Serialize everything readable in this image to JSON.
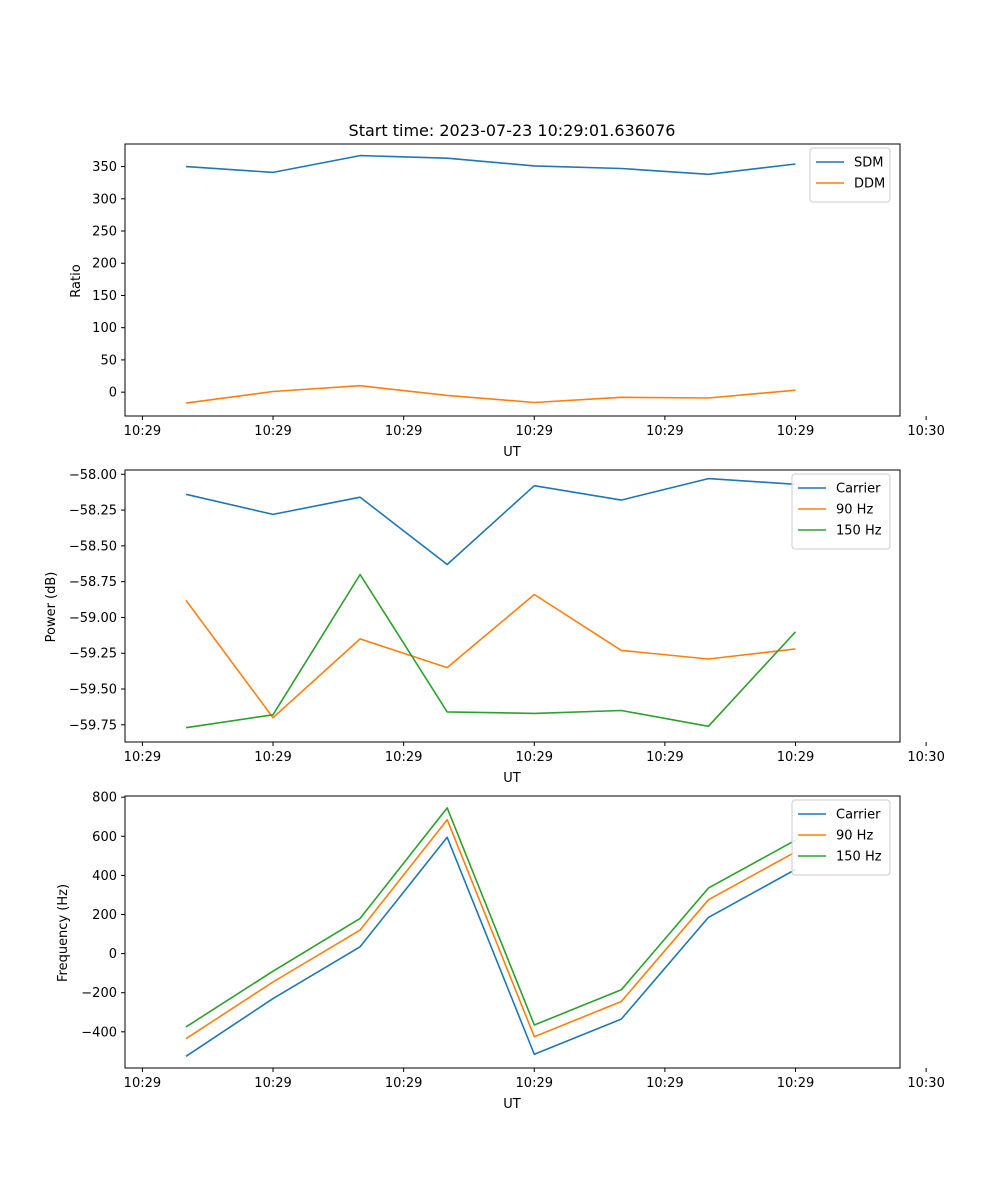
{
  "chart_data": [
    {
      "type": "line",
      "title": "Start time: 2023-07-23 10:29:01.636076",
      "xlabel": "UT",
      "ylabel": "Ratio",
      "x_tick_labels": [
        "10:29",
        "10:29",
        "10:29",
        "10:29",
        "10:29",
        "10:29",
        "10:30"
      ],
      "x": [
        1,
        2,
        3,
        4,
        5,
        6,
        7,
        8
      ],
      "xlim": [
        0.3,
        9.2
      ],
      "x_tick_positions": [
        0.5,
        2,
        3.5,
        5,
        6.5,
        8,
        9.5
      ],
      "ylim": [
        -37,
        385
      ],
      "y_ticks": [
        0,
        50,
        100,
        150,
        200,
        250,
        300,
        350
      ],
      "y_tick_labels": [
        "0",
        "50",
        "100",
        "150",
        "200",
        "250",
        "300",
        "350"
      ],
      "legend_position": "top-right",
      "series": [
        {
          "name": "SDM",
          "color": "#1f77b4",
          "values": [
            350,
            341,
            367,
            363,
            351,
            347,
            338,
            354
          ]
        },
        {
          "name": "DDM",
          "color": "#ff7f0e",
          "values": [
            -17,
            1,
            10,
            -5,
            -16,
            -8,
            -9,
            3
          ]
        }
      ]
    },
    {
      "type": "line",
      "title": "",
      "xlabel": "UT",
      "ylabel": "Power (dB)",
      "x_tick_labels": [
        "10:29",
        "10:29",
        "10:29",
        "10:29",
        "10:29",
        "10:29",
        "10:30"
      ],
      "x": [
        1,
        2,
        3,
        4,
        5,
        6,
        7,
        8
      ],
      "xlim": [
        0.3,
        9.2
      ],
      "x_tick_positions": [
        0.5,
        2,
        3.5,
        5,
        6.5,
        8,
        9.5
      ],
      "ylim": [
        -59.87,
        -57.97
      ],
      "y_ticks": [
        -59.75,
        -59.5,
        -59.25,
        -59.0,
        -58.75,
        -58.5,
        -58.25,
        -58.0
      ],
      "y_tick_labels": [
        "−59.75",
        "−59.50",
        "−59.25",
        "−59.00",
        "−58.75",
        "−58.50",
        "−58.25",
        "−58.00"
      ],
      "legend_position": "top-right",
      "series": [
        {
          "name": "Carrier",
          "color": "#1f77b4",
          "values": [
            -58.14,
            -58.28,
            -58.16,
            -58.63,
            -58.08,
            -58.18,
            -58.03,
            -58.07
          ]
        },
        {
          "name": "90 Hz",
          "color": "#ff7f0e",
          "values": [
            -58.88,
            -59.7,
            -59.15,
            -59.35,
            -58.84,
            -59.23,
            -59.29,
            -59.22
          ]
        },
        {
          "name": "150 Hz",
          "color": "#2ca02c",
          "values": [
            -59.77,
            -59.68,
            -58.7,
            -59.66,
            -59.67,
            -59.65,
            -59.76,
            -59.1
          ]
        }
      ]
    },
    {
      "type": "line",
      "title": "",
      "xlabel": "UT",
      "ylabel": "Frequency (Hz)",
      "x_tick_labels": [
        "10:29",
        "10:29",
        "10:29",
        "10:29",
        "10:29",
        "10:29",
        "10:30"
      ],
      "x": [
        1,
        2,
        3,
        4,
        5,
        6,
        7,
        8
      ],
      "xlim": [
        0.3,
        9.2
      ],
      "x_tick_positions": [
        0.5,
        2,
        3.5,
        5,
        6.5,
        8,
        9.5
      ],
      "ylim": [
        -585,
        806
      ],
      "y_ticks": [
        -400,
        -200,
        0,
        200,
        400,
        600,
        800
      ],
      "y_tick_labels": [
        "−400",
        "−200",
        "0",
        "200",
        "400",
        "600",
        "800"
      ],
      "legend_position": "top-right",
      "series": [
        {
          "name": "Carrier",
          "color": "#1f77b4",
          "values": [
            -525,
            -230,
            35,
            595,
            -515,
            -335,
            185,
            430
          ]
        },
        {
          "name": "90 Hz",
          "color": "#ff7f0e",
          "values": [
            -435,
            -145,
            120,
            685,
            -425,
            -245,
            275,
            520
          ]
        },
        {
          "name": "150 Hz",
          "color": "#2ca02c",
          "values": [
            -375,
            -90,
            180,
            745,
            -365,
            -185,
            335,
            580
          ]
        }
      ]
    }
  ]
}
